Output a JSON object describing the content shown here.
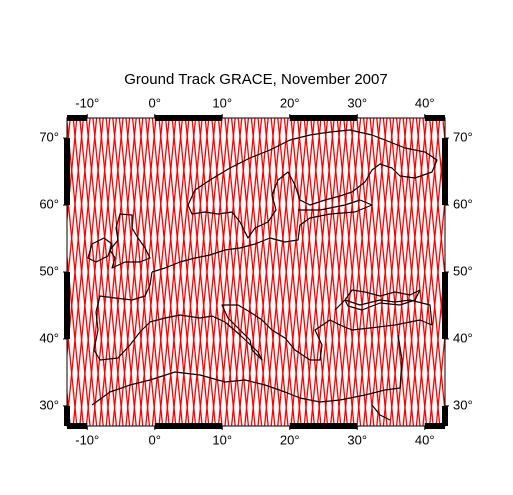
{
  "map": {
    "title": "Ground Track GRACE, November 2007",
    "lonlim": [
      -13,
      43
    ],
    "latlim": [
      27,
      73
    ],
    "lonticks": [
      {
        "value": -10,
        "label": "-10°"
      },
      {
        "value": 0,
        "label": "0°"
      },
      {
        "value": 10,
        "label": "10°"
      },
      {
        "value": 20,
        "label": "20°"
      },
      {
        "value": 30,
        "label": "30°"
      },
      {
        "value": 40,
        "label": "40°"
      }
    ],
    "latticks": [
      {
        "value": 30,
        "label": "30°"
      },
      {
        "value": 40,
        "label": "40°"
      },
      {
        "value": 50,
        "label": "50°"
      },
      {
        "value": 60,
        "label": "60°"
      },
      {
        "value": 70,
        "label": "70°"
      }
    ]
  }
}
